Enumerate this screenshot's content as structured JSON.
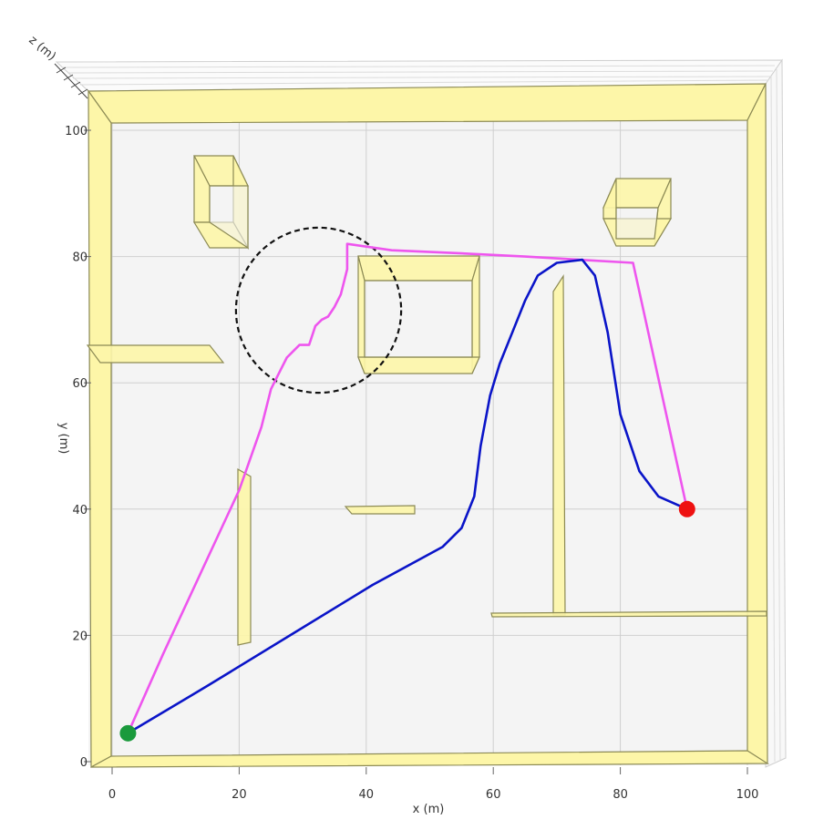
{
  "chart_data": {
    "type": "line",
    "title": "",
    "xlabel": "x (m)",
    "ylabel": "y (m)",
    "zlabel": "z (m)",
    "xlim": [
      0,
      100
    ],
    "ylim": [
      0,
      100
    ],
    "xticks": [
      "0",
      "20",
      "40",
      "60",
      "80",
      "100"
    ],
    "yticks": [
      "0",
      "20",
      "40",
      "60",
      "80",
      "100"
    ],
    "grid": true,
    "colors": {
      "magenta_path": "#ee55ee",
      "blue_path": "#0a14c8",
      "start": "#1a9a3c",
      "goal": "#ee1111",
      "obstacle_fill": "#fdf6a8",
      "obstacle_edge": "#8c8a55",
      "highlight_circle": "#111111"
    },
    "series": [
      {
        "color": "magenta",
        "points": [
          [
            2.5,
            4.5
          ],
          [
            8,
            17
          ],
          [
            14,
            30
          ],
          [
            20,
            43
          ],
          [
            23.5,
            53
          ],
          [
            25,
            59
          ],
          [
            26.5,
            62
          ],
          [
            27.5,
            64
          ],
          [
            28.5,
            65
          ],
          [
            29.5,
            66
          ],
          [
            31,
            66
          ],
          [
            32,
            69
          ],
          [
            33,
            70
          ],
          [
            34,
            70.5
          ],
          [
            35,
            72
          ],
          [
            36,
            74
          ],
          [
            36.5,
            76
          ],
          [
            37,
            78
          ],
          [
            37,
            82
          ],
          [
            44,
            81
          ],
          [
            55,
            80.5
          ],
          [
            65,
            80
          ],
          [
            82,
            79
          ],
          [
            90.5,
            40
          ]
        ]
      },
      {
        "color": "blue",
        "points": [
          [
            2.5,
            4.5
          ],
          [
            15,
            12
          ],
          [
            28,
            20
          ],
          [
            41,
            28
          ],
          [
            52,
            34
          ],
          [
            55,
            37
          ],
          [
            57,
            42
          ],
          [
            58,
            50
          ],
          [
            59.5,
            58
          ],
          [
            61,
            63
          ],
          [
            63,
            68
          ],
          [
            65,
            73
          ],
          [
            67,
            77
          ],
          [
            70,
            79
          ],
          [
            74,
            79.5
          ],
          [
            76,
            77
          ],
          [
            78,
            68
          ],
          [
            80,
            55
          ],
          [
            83,
            46
          ],
          [
            86,
            42
          ],
          [
            90.5,
            40
          ]
        ]
      }
    ],
    "markers": [
      {
        "name": "start",
        "x": 2.5,
        "y": 4.5,
        "color": "green"
      },
      {
        "name": "goal",
        "x": 90.5,
        "y": 40,
        "color": "red"
      }
    ],
    "annotation": {
      "type": "dashed-circle",
      "center": [
        32.5,
        71.5
      ],
      "radius": 13
    }
  }
}
